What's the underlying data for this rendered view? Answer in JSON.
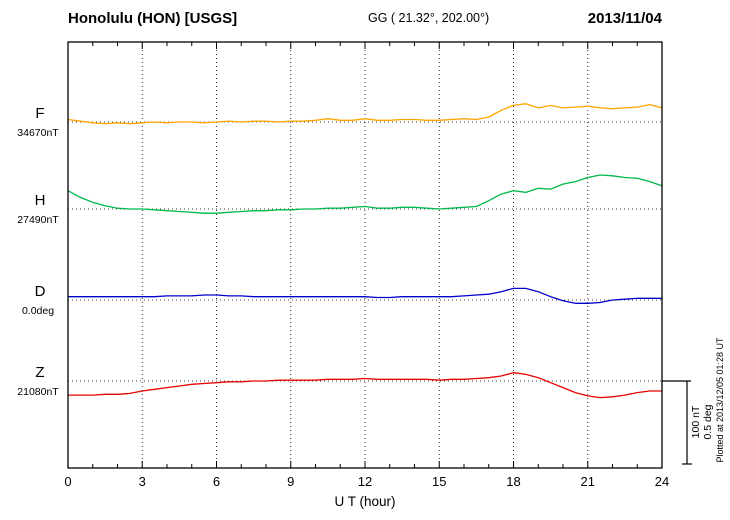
{
  "header": {
    "station": "Honolulu (HON)  [USGS]",
    "coords": "GG ( 21.32°, 202.00°)",
    "date": "2013/11/04"
  },
  "footer_note": "Plotted at 2013/12/05 01:28 UT",
  "chart_data": {
    "type": "line",
    "xlabel": "U T (hour)",
    "x_unit": "hour",
    "x_range": [
      0,
      24
    ],
    "x_step": 0.5,
    "xticks": [
      0,
      3,
      6,
      9,
      12,
      15,
      18,
      21,
      24
    ],
    "grid": "dotted vertical at 3h intervals, dotted horizontal baselines",
    "scale_bar": {
      "nT": 100,
      "deg": 0.5,
      "label_nt": "100 nT",
      "label_deg": "0.5 deg"
    },
    "series": [
      {
        "key": "F",
        "label": "F",
        "baseline_label": "34670nT",
        "baseline_value": 34670,
        "unit": "nT",
        "color": "#ffa400",
        "offsets": [
          3,
          1,
          -1,
          -2,
          -1,
          -2,
          -1,
          0,
          -1,
          0,
          0,
          -1,
          0,
          1,
          0,
          1,
          1,
          0,
          1,
          1,
          2,
          4,
          2,
          2,
          4,
          2,
          2,
          3,
          3,
          2,
          2,
          3,
          4,
          3,
          6,
          14,
          20,
          22,
          17,
          20,
          17,
          18,
          19,
          17,
          16,
          17,
          18,
          21,
          17
        ]
      },
      {
        "key": "H",
        "label": "H",
        "baseline_label": "27490nT",
        "baseline_value": 27490,
        "unit": "nT",
        "color": "#00b84c",
        "offsets": [
          22,
          14,
          8,
          4,
          1,
          0,
          0,
          -1,
          -2,
          -3,
          -4,
          -5,
          -5,
          -4,
          -3,
          -2,
          -2,
          -1,
          -1,
          0,
          0,
          1,
          1,
          2,
          3,
          1,
          1,
          2,
          2,
          1,
          0,
          1,
          2,
          3,
          10,
          18,
          22,
          20,
          25,
          24,
          30,
          33,
          38,
          41,
          40,
          38,
          37,
          33,
          28
        ]
      },
      {
        "key": "D",
        "label": "D",
        "baseline_label": "0.0deg",
        "baseline_value": 0.0,
        "unit": "deg",
        "color": "#0000cd",
        "offsets": [
          0.02,
          0.02,
          0.02,
          0.02,
          0.02,
          0.02,
          0.02,
          0.02,
          0.025,
          0.025,
          0.025,
          0.03,
          0.03,
          0.025,
          0.025,
          0.02,
          0.02,
          0.02,
          0.02,
          0.02,
          0.02,
          0.02,
          0.02,
          0.02,
          0.02,
          0.015,
          0.015,
          0.02,
          0.02,
          0.02,
          0.02,
          0.02,
          0.025,
          0.03,
          0.035,
          0.05,
          0.07,
          0.07,
          0.05,
          0.02,
          -0.005,
          -0.02,
          -0.02,
          -0.015,
          0,
          0.005,
          0.01,
          0.01,
          0.01
        ]
      },
      {
        "key": "Z",
        "label": "Z",
        "baseline_label": "21080nT",
        "baseline_value": 21080,
        "unit": "nT",
        "color": "#e60000",
        "offsets": [
          -17,
          -17,
          -17,
          -16,
          -16,
          -15,
          -12,
          -10,
          -8,
          -6,
          -4,
          -3,
          -2,
          -1,
          -1,
          0,
          0,
          1,
          1,
          1,
          1,
          2,
          2,
          2,
          3,
          2,
          2,
          2,
          2,
          2,
          1,
          2,
          2,
          3,
          4,
          6,
          10,
          8,
          4,
          -2,
          -8,
          -14,
          -18,
          -20,
          -19,
          -17,
          -14,
          -12,
          -12
        ]
      }
    ]
  }
}
